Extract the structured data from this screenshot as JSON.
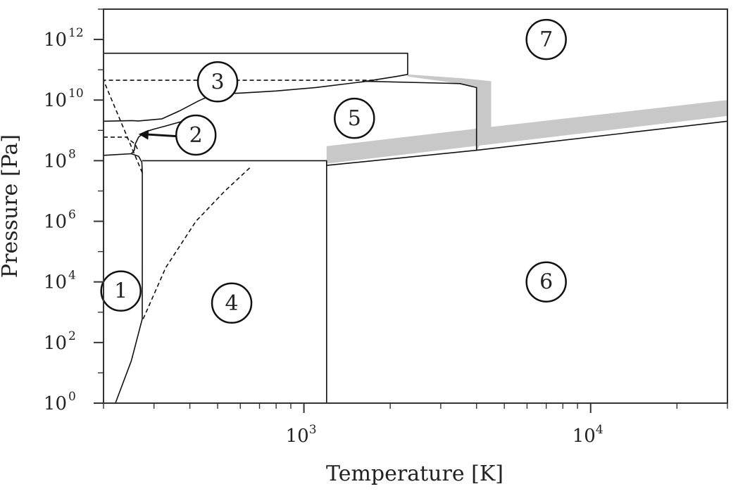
{
  "chart_data": {
    "type": "line",
    "title": "",
    "xlabel": "Temperature [K]",
    "ylabel": "Pressure [Pa]",
    "x_scale": "log",
    "y_scale": "log",
    "xlim": [
      200,
      30000
    ],
    "ylim": [
      1,
      10000000000000.0
    ],
    "grid": false,
    "x_ticks": [
      {
        "value": 1000,
        "base": "10",
        "exp": "3"
      },
      {
        "value": 10000,
        "base": "10",
        "exp": "4"
      }
    ],
    "y_ticks": [
      {
        "value": 1,
        "base": "10",
        "exp": "0"
      },
      {
        "value": 100,
        "base": "10",
        "exp": "2"
      },
      {
        "value": 10000,
        "base": "10",
        "exp": "4"
      },
      {
        "value": 1000000,
        "base": "10",
        "exp": "6"
      },
      {
        "value": 100000000,
        "base": "10",
        "exp": "8"
      },
      {
        "value": 10000000000,
        "base": "10",
        "exp": "10"
      },
      {
        "value": 1000000000000,
        "base": "10",
        "exp": "12"
      }
    ],
    "regions": [
      {
        "label": "1",
        "x": 230,
        "y": 5000
      },
      {
        "label": "2",
        "x": 420,
        "y": 700000000
      },
      {
        "label": "3",
        "x": 500,
        "y": 40000000000
      },
      {
        "label": "4",
        "x": 560,
        "y": 2000
      },
      {
        "label": "5",
        "x": 1500,
        "y": 2500000000
      },
      {
        "label": "6",
        "x": 7000,
        "y": 10000
      },
      {
        "label": "7",
        "x": 7000,
        "y": 1000000000000
      }
    ],
    "lines": [
      {
        "style": "solid",
        "points": [
          [
            220,
            1
          ],
          [
            250,
            25
          ],
          [
            273,
            600
          ],
          [
            273.2,
            100000.0
          ],
          [
            273.2,
            40000000.0
          ],
          [
            272,
            90000000.0
          ],
          [
            265,
            140000000.0
          ],
          [
            250,
            170000000.0
          ],
          [
            200,
            150000000.0
          ]
        ]
      },
      {
        "style": "solid",
        "points": [
          [
            200,
            2000000000.0
          ],
          [
            251,
            2100000000.0
          ],
          [
            265,
            2050000000.0
          ],
          [
            320,
            2400000000.0
          ],
          [
            370,
            4500000000.0
          ],
          [
            430,
            9500000000.0
          ],
          [
            480,
            15000000000.0
          ],
          [
            520,
            16000000000.0
          ],
          [
            600,
            17000000000.0
          ],
          [
            800,
            20000000000.0
          ],
          [
            1100,
            26000000000.0
          ],
          [
            1600,
            40000000000.0
          ],
          [
            2100,
            60000000000.0
          ],
          [
            2300,
            70000000000.0
          ],
          [
            2300,
            350000000000.0
          ],
          [
            200,
            350000000000.0
          ]
        ]
      },
      {
        "style": "solid",
        "points": [
          [
            250,
            170000000.0
          ],
          [
            256,
            220000000.0
          ],
          [
            258,
            350000000.0
          ],
          [
            265,
            600000000.0
          ],
          [
            280,
            900000000.0
          ],
          [
            300,
            1100000000.0
          ],
          [
            330,
            1400000000.0
          ],
          [
            370,
            1900000000.0
          ],
          [
            430,
            2600000000.0
          ]
        ]
      },
      {
        "style": "solid",
        "points": [
          [
            273,
            100000000.0
          ],
          [
            1200,
            100000000.0
          ],
          [
            1200,
            1
          ]
        ]
      },
      {
        "style": "solid",
        "points": [
          [
            1200,
            70000000.0
          ],
          [
            4000,
            220000000.0
          ],
          [
            30000,
            2000000000.0
          ]
        ]
      },
      {
        "style": "solid",
        "points": [
          [
            1600,
            42000000000.0
          ],
          [
            3500,
            35000000000.0
          ],
          [
            4000,
            26000000000.0
          ],
          [
            4000,
            220000000.0
          ]
        ]
      },
      {
        "style": "dashed",
        "points": [
          [
            273,
            40000000.0
          ],
          [
            200,
            45000000000.0
          ],
          [
            1800,
            45000000000.0
          ]
        ]
      },
      {
        "style": "dashed",
        "points": [
          [
            275,
            600
          ],
          [
            330,
            30000.0
          ],
          [
            420,
            1000000.0
          ],
          [
            530,
            10000000.0
          ],
          [
            650,
            60000000.0
          ]
        ]
      },
      {
        "style": "dashed",
        "points": [
          [
            200,
            600000000.0
          ],
          [
            240,
            600000000.0
          ],
          [
            258,
            350000000.0
          ],
          [
            265,
            200000000.0
          ]
        ]
      }
    ],
    "bands": [
      {
        "points": [
          [
            1200,
            300000000.0
          ],
          [
            4500,
            1300000000.0
          ],
          [
            30000,
            10000000000.0
          ],
          [
            30000,
            3000000000.0
          ],
          [
            4500,
            350000000.0
          ],
          [
            1200,
            80000000.0
          ]
        ]
      },
      {
        "points": [
          [
            2300,
            70000000000.0
          ],
          [
            3600,
            52000000000.0
          ],
          [
            4500,
            42000000000.0
          ],
          [
            4500,
            1300000000.0
          ],
          [
            4000,
            220000000.0
          ],
          [
            4000,
            28000000000.0
          ],
          [
            3500,
            35000000000.0
          ],
          [
            2300,
            60000000000.0
          ]
        ]
      }
    ],
    "arrow": {
      "from": [
        370,
        630000000.0
      ],
      "to": [
        265,
        750000000.0
      ]
    }
  }
}
